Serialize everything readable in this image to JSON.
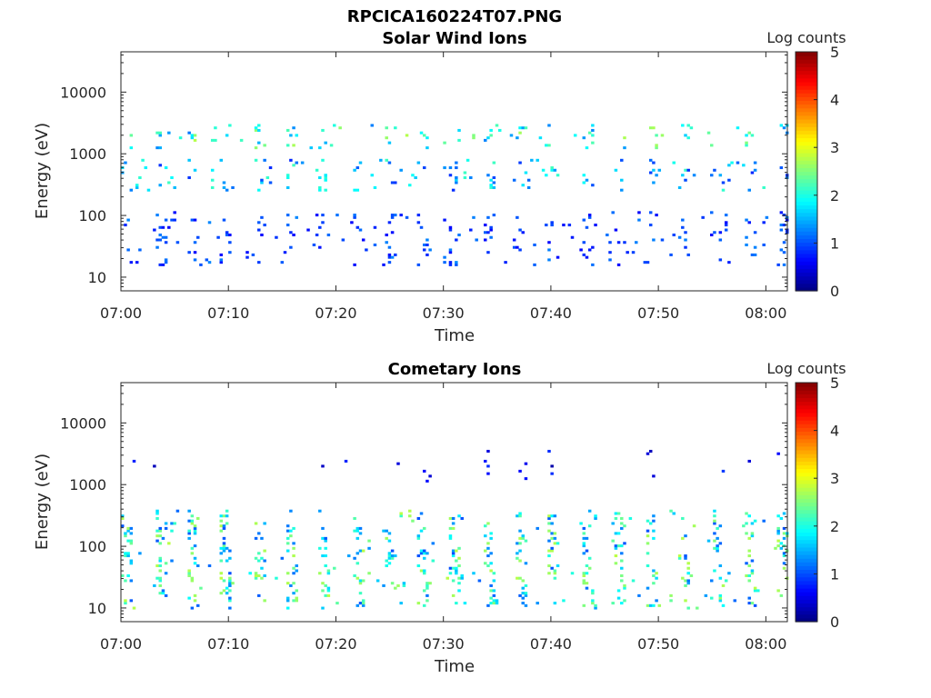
{
  "figure": {
    "filename": "RPCICA160224T07.PNG"
  },
  "chart_data": [
    {
      "type": "heatmap",
      "title": "Solar Wind Ions",
      "xlabel": "Time",
      "ylabel": "Energy (eV)",
      "yscale": "log",
      "ylim": [
        6,
        45000
      ],
      "xlim": [
        "07:00",
        "08:02"
      ],
      "x_ticks": [
        "07:00",
        "07:10",
        "07:20",
        "07:30",
        "07:40",
        "07:50",
        "08:00"
      ],
      "y_ticks": [
        "10",
        "100",
        "1000",
        "10000"
      ],
      "colorbar": {
        "label": "Log counts",
        "range": [
          0,
          5
        ],
        "ticks": [
          "0",
          "1",
          "2",
          "3",
          "4",
          "5"
        ],
        "colormap": "jet"
      },
      "grid": false,
      "features": [
        {
          "energy_range_eV": [
            15,
            120
          ],
          "log_counts": [
            0.6,
            1.3
          ],
          "note": "periodic low-energy streaks roughly every 3 minutes"
        },
        {
          "energy_range_eV": [
            250,
            800
          ],
          "log_counts": [
            0.8,
            2.2
          ],
          "note": "scattered mid-energy counts"
        },
        {
          "energy_range_eV": [
            1200,
            3000
          ],
          "log_counts": [
            1.2,
            2.8
          ],
          "note": "solar wind proton band, brightest near 07:56 and 08:01"
        }
      ]
    },
    {
      "type": "heatmap",
      "title": "Cometary Ions",
      "xlabel": "Time",
      "ylabel": "Energy (eV)",
      "yscale": "log",
      "ylim": [
        6,
        45000
      ],
      "xlim": [
        "07:00",
        "08:02"
      ],
      "x_ticks": [
        "07:00",
        "07:10",
        "07:20",
        "07:30",
        "07:40",
        "07:50",
        "08:00"
      ],
      "y_ticks": [
        "10",
        "100",
        "1000",
        "10000"
      ],
      "colorbar": {
        "label": "Log counts",
        "range": [
          0,
          5
        ],
        "ticks": [
          "0",
          "1",
          "2",
          "3",
          "4",
          "5"
        ],
        "colormap": "jet"
      },
      "grid": false,
      "features": [
        {
          "energy_range_eV": [
            10,
            400
          ],
          "log_counts": [
            1.0,
            2.8
          ],
          "note": "curved periodic cometary ion streaks about every 3 minutes"
        },
        {
          "energy_range_eV": [
            20,
            40
          ],
          "log_counts": [
            2.0,
            2.8
          ],
          "note": "enhanced low-energy band"
        },
        {
          "energy_range_eV": [
            1000,
            3500
          ],
          "log_counts": [
            0.2,
            0.9
          ],
          "note": "sparse high-energy counts"
        }
      ]
    }
  ]
}
